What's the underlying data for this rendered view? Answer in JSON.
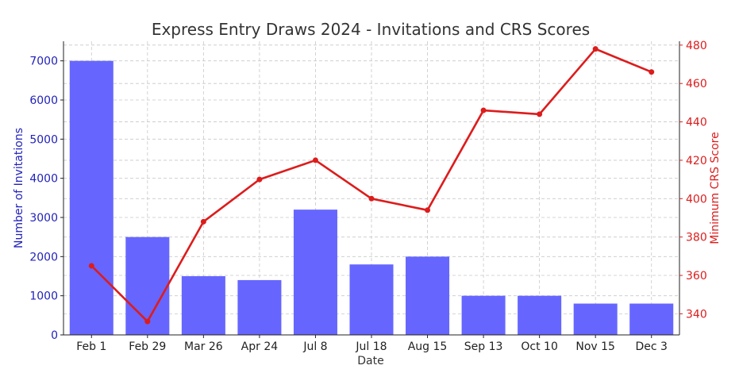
{
  "chart_data": {
    "type": "bar+line",
    "title": "Express Entry Draws 2024 - Invitations and CRS Scores",
    "xlabel": "Date",
    "categories": [
      "Feb 1",
      "Feb 29",
      "Mar 26",
      "Apr 24",
      "Jul 8",
      "Jul 18",
      "Aug 15",
      "Sep 13",
      "Oct 10",
      "Nov 15",
      "Dec 3"
    ],
    "series": [
      {
        "type": "bar",
        "axis": "left",
        "color": "#6666ff",
        "values": [
          7000,
          2500,
          1500,
          1400,
          3200,
          1800,
          2000,
          1000,
          1000,
          800,
          800
        ]
      },
      {
        "type": "line",
        "axis": "right",
        "color": "#dd1c1c",
        "values": [
          365,
          336,
          388,
          410,
          420,
          400,
          394,
          446,
          444,
          478,
          466
        ]
      }
    ],
    "y_left": {
      "label": "Number of Invitations",
      "color": "#2222bb",
      "ticks": [
        0,
        1000,
        2000,
        3000,
        4000,
        5000,
        6000,
        7000
      ],
      "ylim": [
        0,
        7500
      ]
    },
    "y_right": {
      "label": "Minimum CRS Score",
      "color": "#dd1c1c",
      "ticks": [
        340,
        360,
        380,
        400,
        420,
        440,
        460,
        480
      ],
      "ylim": [
        329,
        482
      ]
    },
    "grid": true
  }
}
